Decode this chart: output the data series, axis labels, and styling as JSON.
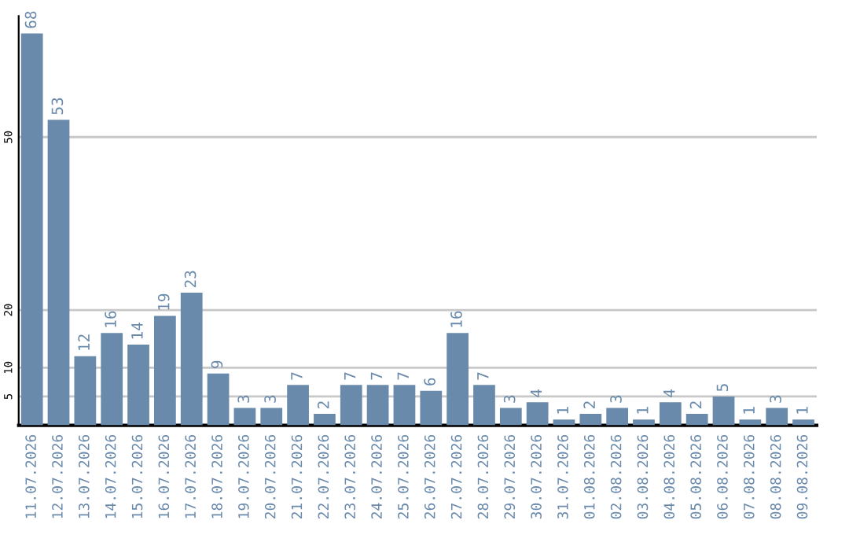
{
  "chart_data": {
    "type": "bar",
    "categories": [
      "11.07.2026",
      "12.07.2026",
      "13.07.2026",
      "14.07.2026",
      "15.07.2026",
      "16.07.2026",
      "17.07.2026",
      "18.07.2026",
      "19.07.2026",
      "20.07.2026",
      "21.07.2026",
      "22.07.2026",
      "23.07.2026",
      "24.07.2026",
      "25.07.2026",
      "26.07.2026",
      "27.07.2026",
      "28.07.2026",
      "29.07.2026",
      "30.07.2026",
      "31.07.2026",
      "01.08.2026",
      "02.08.2026",
      "03.08.2026",
      "04.08.2026",
      "05.08.2026",
      "06.08.2026",
      "07.08.2026",
      "08.08.2026",
      "09.08.2026"
    ],
    "values": [
      68,
      53,
      12,
      16,
      14,
      19,
      23,
      9,
      3,
      3,
      7,
      2,
      7,
      7,
      7,
      6,
      16,
      7,
      3,
      4,
      1,
      2,
      3,
      1,
      4,
      2,
      5,
      1,
      3,
      1
    ],
    "color": "#6a8aac",
    "ylim": [
      0,
      71
    ],
    "yticks": [
      5,
      10,
      20,
      50
    ],
    "grid": "y",
    "data_labels": true,
    "legend": false
  }
}
